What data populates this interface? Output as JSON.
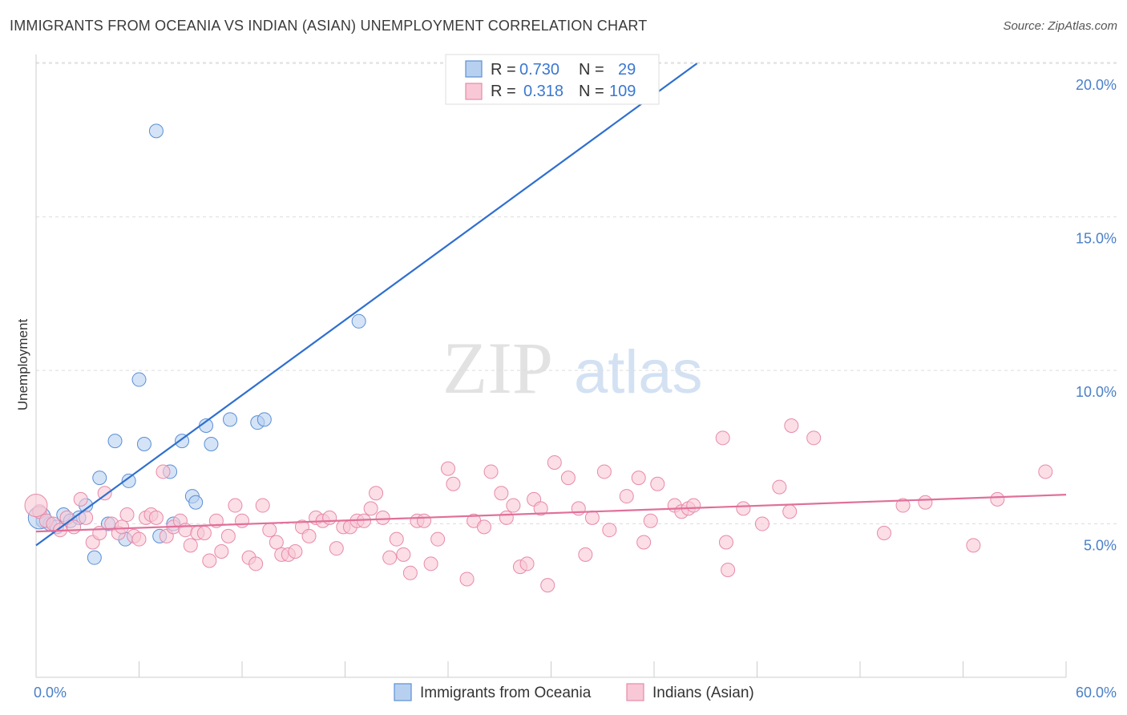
{
  "title": "IMMIGRANTS FROM OCEANIA VS INDIAN (ASIAN) UNEMPLOYMENT CORRELATION CHART",
  "source": "Source: ZipAtlas.com",
  "watermark": {
    "zip": "ZIP",
    "atlas": "atlas"
  },
  "chart_data": {
    "type": "scatter",
    "xlabel": "",
    "ylabel": "Unemployment",
    "xlim": [
      0,
      60
    ],
    "ylim": [
      0,
      20.5
    ],
    "x_tick_labels": [
      "0.0%",
      "60.0%"
    ],
    "y_ticks": [
      5,
      10,
      15,
      20
    ],
    "y_tick_labels": [
      "5.0%",
      "10.0%",
      "15.0%",
      "20.0%"
    ],
    "grid": "horizontal dashed",
    "legend_placement": "top-center and bottom",
    "stats": [
      {
        "r_label": "R =",
        "r": "0.730",
        "n_label": "N =",
        "n": "29"
      },
      {
        "r_label": "R =",
        "r": "0.318",
        "n_label": "N =",
        "n": "109"
      }
    ],
    "series": [
      {
        "name": "Immigrants from Oceania",
        "color": "#5b8fd6",
        "fill": "#b8d0f0",
        "trend": {
          "x0": 0,
          "y0": 4.3,
          "x1": 38.5,
          "y1": 20.0,
          "color": "#2f6fd0"
        },
        "points": [
          [
            0.4,
            5.1
          ],
          [
            0.8,
            5.0
          ],
          [
            1.2,
            4.9
          ],
          [
            1.6,
            5.3
          ],
          [
            2.0,
            5.1
          ],
          [
            2.5,
            5.2
          ],
          [
            2.9,
            5.6
          ],
          [
            3.4,
            3.9
          ],
          [
            3.7,
            6.5
          ],
          [
            4.2,
            5.0
          ],
          [
            4.6,
            7.7
          ],
          [
            5.2,
            4.5
          ],
          [
            5.4,
            6.4
          ],
          [
            6.0,
            9.7
          ],
          [
            6.3,
            7.6
          ],
          [
            7.0,
            17.8
          ],
          [
            7.2,
            4.6
          ],
          [
            7.8,
            6.7
          ],
          [
            8.0,
            5.0
          ],
          [
            8.5,
            7.7
          ],
          [
            9.1,
            5.9
          ],
          [
            9.3,
            5.7
          ],
          [
            9.9,
            8.2
          ],
          [
            10.2,
            7.6
          ],
          [
            11.3,
            8.4
          ],
          [
            12.9,
            8.3
          ],
          [
            13.3,
            8.4
          ],
          [
            18.8,
            11.6
          ],
          [
            0.2,
            5.2
          ]
        ]
      },
      {
        "name": "Indians (Asian)",
        "color": "#e88aa8",
        "fill": "#f8c8d6",
        "trend": {
          "x0": 0,
          "y0": 4.75,
          "x1": 60,
          "y1": 5.95,
          "color": "#e0709a"
        },
        "points": [
          [
            0.2,
            5.4
          ],
          [
            0.6,
            5.1
          ],
          [
            1.0,
            5.0
          ],
          [
            1.4,
            4.8
          ],
          [
            1.8,
            5.2
          ],
          [
            2.2,
            4.9
          ],
          [
            2.6,
            5.8
          ],
          [
            2.9,
            5.2
          ],
          [
            3.3,
            4.4
          ],
          [
            3.7,
            4.7
          ],
          [
            4.0,
            6.0
          ],
          [
            4.4,
            5.0
          ],
          [
            4.8,
            4.7
          ],
          [
            5.0,
            4.9
          ],
          [
            5.3,
            5.3
          ],
          [
            5.7,
            4.6
          ],
          [
            6.0,
            4.5
          ],
          [
            6.4,
            5.2
          ],
          [
            6.7,
            5.3
          ],
          [
            7.0,
            5.2
          ],
          [
            7.4,
            6.7
          ],
          [
            7.6,
            4.6
          ],
          [
            8.0,
            4.9
          ],
          [
            8.4,
            5.1
          ],
          [
            8.7,
            4.8
          ],
          [
            9.0,
            4.3
          ],
          [
            9.4,
            4.7
          ],
          [
            9.8,
            4.7
          ],
          [
            10.1,
            3.8
          ],
          [
            10.5,
            5.1
          ],
          [
            10.8,
            4.1
          ],
          [
            11.2,
            4.6
          ],
          [
            11.6,
            5.6
          ],
          [
            12.0,
            5.1
          ],
          [
            12.4,
            3.9
          ],
          [
            12.8,
            3.7
          ],
          [
            13.2,
            5.6
          ],
          [
            13.6,
            4.8
          ],
          [
            14.0,
            4.4
          ],
          [
            14.3,
            4.0
          ],
          [
            14.7,
            4.0
          ],
          [
            15.1,
            4.1
          ],
          [
            15.5,
            4.9
          ],
          [
            15.9,
            4.6
          ],
          [
            16.3,
            5.2
          ],
          [
            16.7,
            5.1
          ],
          [
            17.1,
            5.2
          ],
          [
            17.5,
            4.2
          ],
          [
            17.9,
            4.9
          ],
          [
            18.3,
            4.9
          ],
          [
            18.7,
            5.1
          ],
          [
            19.1,
            5.1
          ],
          [
            19.5,
            5.5
          ],
          [
            19.8,
            6.0
          ],
          [
            20.2,
            5.2
          ],
          [
            20.6,
            3.9
          ],
          [
            21.0,
            4.5
          ],
          [
            21.4,
            4.0
          ],
          [
            21.8,
            3.4
          ],
          [
            22.2,
            5.1
          ],
          [
            22.6,
            5.1
          ],
          [
            23.0,
            3.7
          ],
          [
            23.4,
            4.5
          ],
          [
            24.0,
            6.8
          ],
          [
            24.3,
            6.3
          ],
          [
            25.1,
            3.2
          ],
          [
            25.5,
            5.1
          ],
          [
            26.1,
            4.9
          ],
          [
            26.5,
            6.7
          ],
          [
            27.1,
            6.0
          ],
          [
            27.4,
            5.2
          ],
          [
            27.8,
            5.6
          ],
          [
            28.2,
            3.6
          ],
          [
            28.6,
            3.7
          ],
          [
            29.0,
            5.8
          ],
          [
            29.4,
            5.5
          ],
          [
            29.8,
            3.0
          ],
          [
            30.2,
            7.0
          ],
          [
            31.0,
            6.5
          ],
          [
            31.6,
            5.5
          ],
          [
            32.0,
            4.0
          ],
          [
            32.4,
            5.2
          ],
          [
            33.1,
            6.7
          ],
          [
            33.4,
            4.8
          ],
          [
            34.4,
            5.9
          ],
          [
            35.1,
            6.5
          ],
          [
            35.4,
            4.4
          ],
          [
            35.8,
            5.1
          ],
          [
            36.2,
            6.3
          ],
          [
            37.2,
            5.6
          ],
          [
            37.6,
            5.4
          ],
          [
            38.0,
            5.5
          ],
          [
            38.3,
            5.6
          ],
          [
            40.0,
            7.8
          ],
          [
            40.2,
            4.4
          ],
          [
            40.3,
            3.5
          ],
          [
            41.2,
            5.5
          ],
          [
            42.3,
            5.0
          ],
          [
            43.3,
            6.2
          ],
          [
            43.9,
            5.4
          ],
          [
            44.0,
            8.2
          ],
          [
            45.3,
            7.8
          ],
          [
            49.4,
            4.7
          ],
          [
            50.5,
            5.6
          ],
          [
            51.8,
            5.7
          ],
          [
            54.6,
            4.3
          ],
          [
            56.0,
            5.8
          ],
          [
            58.8,
            6.7
          ],
          [
            0.0,
            5.6
          ]
        ]
      }
    ]
  },
  "legend": {
    "bottom": [
      {
        "label": "Immigrants from Oceania",
        "color": "#5b8fd6",
        "fill": "#b8d0f0"
      },
      {
        "label": "Indians (Asian)",
        "color": "#e88aa8",
        "fill": "#f8c8d6"
      }
    ]
  }
}
